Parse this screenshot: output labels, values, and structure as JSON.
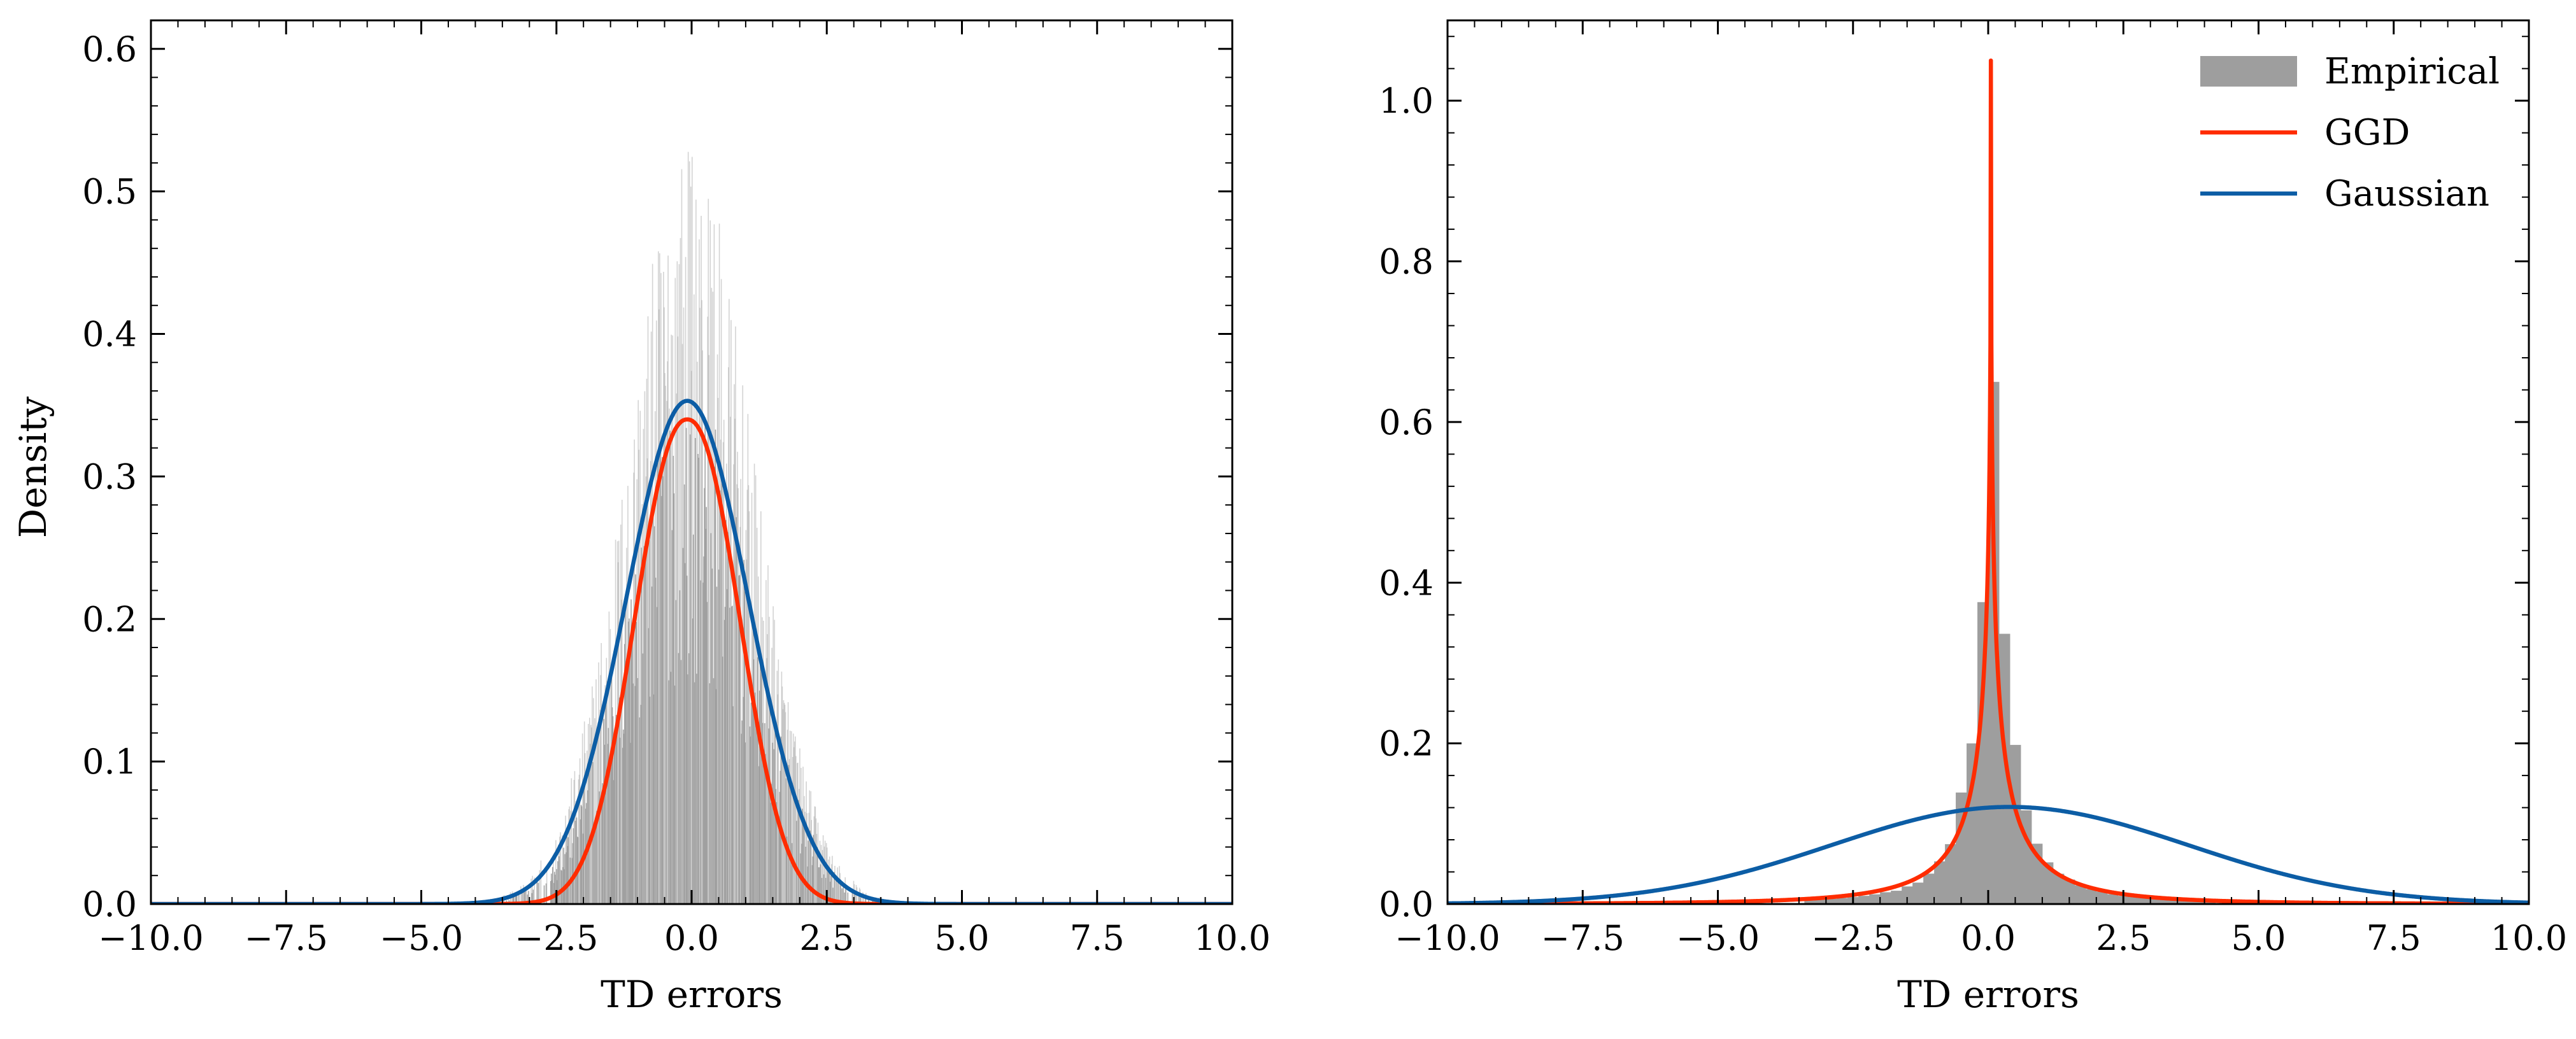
{
  "colors": {
    "empirical": "#9e9e9e",
    "ggd": "#ff2c00",
    "gaussian": "#0c5da5"
  },
  "chart_data": [
    {
      "type": "histogram",
      "panel": "left",
      "xlabel": "TD errors",
      "ylabel": "Density",
      "xlim": [
        -10,
        10
      ],
      "ylim": [
        0,
        0.62
      ],
      "xticks": [
        -10,
        -7.5,
        -5,
        -2.5,
        0,
        2.5,
        5,
        7.5,
        10
      ],
      "xtick_labels": [
        "−10.0",
        "−7.5",
        "−5.0",
        "−2.5",
        "0.0",
        "2.5",
        "5.0",
        "7.5",
        "10.0"
      ],
      "yticks": [
        0,
        0.1,
        0.2,
        0.3,
        0.4,
        0.5,
        0.6
      ],
      "ytick_labels": [
        "0.0",
        "0.1",
        "0.2",
        "0.3",
        "0.4",
        "0.5",
        "0.6"
      ],
      "legend": false,
      "grid": false,
      "series": [
        {
          "kind": "histogram",
          "color_key": "empirical",
          "bins": "many narrow bins, roughly -3.5 to 3.5",
          "peak_density": 0.58
        },
        {
          "kind": "curve",
          "color_key": "ggd",
          "mean": -0.08,
          "scale": 1.3,
          "shape": 2.2,
          "peak_density": 0.34
        },
        {
          "kind": "curve",
          "color_key": "gaussian",
          "mean": -0.08,
          "std": 1.13,
          "peak_density": 0.352
        }
      ]
    },
    {
      "type": "histogram",
      "panel": "right",
      "xlabel": "TD errors",
      "ylabel": "",
      "xlim": [
        -10,
        10
      ],
      "ylim": [
        0,
        1.1
      ],
      "xticks": [
        -10,
        -7.5,
        -5,
        -2.5,
        0,
        2.5,
        5,
        7.5,
        10
      ],
      "xtick_labels": [
        "−10.0",
        "−7.5",
        "−5.0",
        "−2.5",
        "0.0",
        "2.5",
        "5.0",
        "7.5",
        "10.0"
      ],
      "yticks": [
        0,
        0.2,
        0.4,
        0.6,
        0.8,
        1.0
      ],
      "ytick_labels": [
        "0.0",
        "0.2",
        "0.4",
        "0.6",
        "0.8",
        "1.0"
      ],
      "legend": true,
      "legend_position": "top-right",
      "grid": false,
      "series": [
        {
          "name": "Empirical",
          "kind": "histogram",
          "color_key": "empirical",
          "bin_width": 0.2,
          "peak_density": 0.65
        },
        {
          "name": "GGD",
          "kind": "curve",
          "color_key": "ggd",
          "mean": 0.05,
          "scale": 0.0006,
          "shape": 0.22,
          "peak_density": 1.05
        },
        {
          "name": "Gaussian",
          "kind": "curve",
          "color_key": "gaussian",
          "mean": 0.4,
          "std": 3.3,
          "peak_density": 0.12
        }
      ]
    }
  ]
}
